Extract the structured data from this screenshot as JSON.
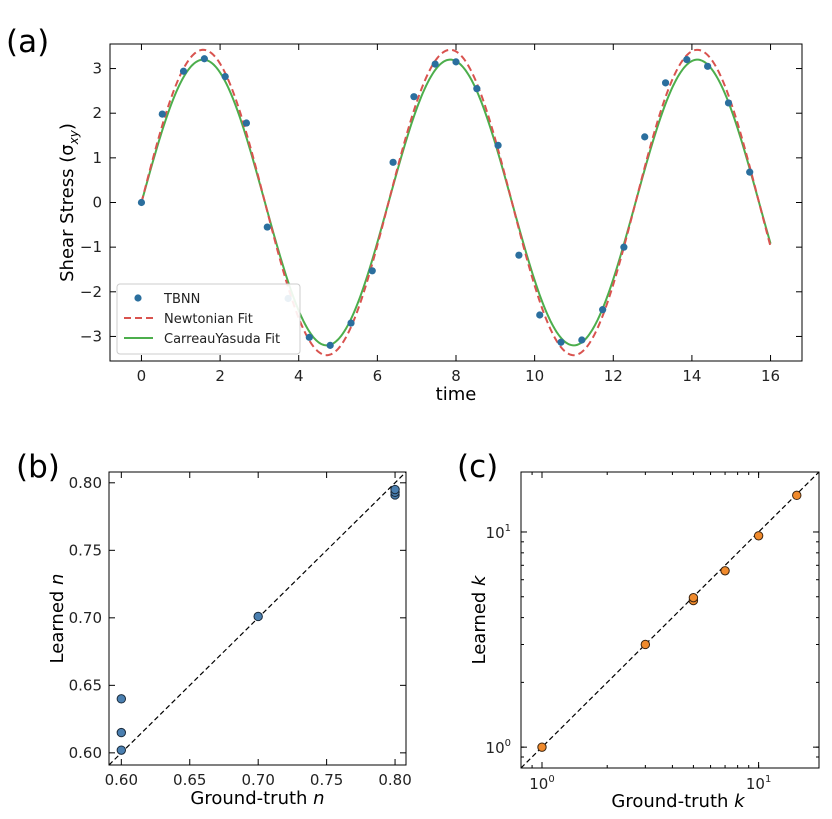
{
  "chart_data": [
    {
      "panel": "(a)",
      "type": "line",
      "xlabel": "time",
      "ylabel": "Shear Stress (σ",
      "ylabel_sub": "xy",
      "ylabel_close": ")",
      "xlim": [
        -0.8,
        16.8
      ],
      "ylim": [
        -3.55,
        3.55
      ],
      "xticks": [
        0,
        2,
        4,
        6,
        8,
        10,
        12,
        14,
        16
      ],
      "yticks": [
        -3,
        -2,
        -1,
        0,
        1,
        2,
        3
      ],
      "series": [
        {
          "name": "TBNN",
          "kind": "scatter",
          "color": "#2b6f9e",
          "x": [
            0,
            0.53,
            1.07,
            1.6,
            2.13,
            2.67,
            3.2,
            3.73,
            4.27,
            4.8,
            5.33,
            5.87,
            6.4,
            6.93,
            7.47,
            8.0,
            8.53,
            9.07,
            9.6,
            10.13,
            10.67,
            11.2,
            11.73,
            12.27,
            12.8,
            13.33,
            13.87,
            14.4,
            14.93,
            15.47
          ],
          "y": [
            0.0,
            1.98,
            2.94,
            3.22,
            2.82,
            1.78,
            -0.55,
            -2.15,
            -3.02,
            -3.2,
            -2.7,
            -1.53,
            0.9,
            2.37,
            3.1,
            3.15,
            2.55,
            1.28,
            -1.18,
            -2.52,
            -3.13,
            -3.08,
            -2.4,
            -1.0,
            1.47,
            2.68,
            3.2,
            3.05,
            2.23,
            0.68
          ]
        },
        {
          "name": "Newtonian Fit",
          "kind": "dashed",
          "color": "#d9534f",
          "amplitude": 3.42,
          "omega": 1.0
        },
        {
          "name": "CarreauYasuda Fit",
          "kind": "line",
          "color": "#4cae4c",
          "amplitude": 3.2,
          "omega": 1.0
        }
      ],
      "legend": [
        "TBNN",
        "Newtonian Fit",
        "CarreauYasuda Fit"
      ]
    },
    {
      "panel": "(b)",
      "type": "scatter",
      "xlabel": "Ground-truth ",
      "xlabel_var": "n",
      "ylabel": "Learned ",
      "ylabel_var": "n",
      "xlim": [
        0.591,
        0.808
      ],
      "ylim": [
        0.591,
        0.808
      ],
      "xticks": [
        "0.60",
        "0.65",
        "0.70",
        "0.75",
        "0.80"
      ],
      "yticks": [
        "0.60",
        "0.65",
        "0.70",
        "0.75",
        "0.80"
      ],
      "color": "#4a7fb0",
      "points": [
        [
          0.6,
          0.64
        ],
        [
          0.6,
          0.615
        ],
        [
          0.6,
          0.602
        ],
        [
          0.7,
          0.701
        ],
        [
          0.8,
          0.791
        ],
        [
          0.8,
          0.793
        ],
        [
          0.8,
          0.795
        ]
      ],
      "reference_line": "y = x"
    },
    {
      "panel": "(c)",
      "type": "scatter",
      "scale": "log",
      "xlabel": "Ground-truth ",
      "xlabel_var": "k",
      "ylabel": "Learned ",
      "ylabel_var": "k",
      "xlim": [
        0.8,
        19
      ],
      "ylim": [
        0.8,
        19
      ],
      "xticks": [
        {
          "base": "10",
          "exp": "0",
          "value": 1
        },
        {
          "base": "10",
          "exp": "1",
          "value": 10
        }
      ],
      "yticks": [
        {
          "base": "10",
          "exp": "0",
          "value": 1
        },
        {
          "base": "10",
          "exp": "1",
          "value": 10
        }
      ],
      "color": "#f08a2c",
      "points": [
        [
          1,
          1.0
        ],
        [
          3,
          3.0
        ],
        [
          5,
          4.8
        ],
        [
          5,
          4.95
        ],
        [
          7,
          6.6
        ],
        [
          10,
          9.6
        ],
        [
          15,
          14.8
        ]
      ],
      "reference_line": "y = x"
    }
  ]
}
